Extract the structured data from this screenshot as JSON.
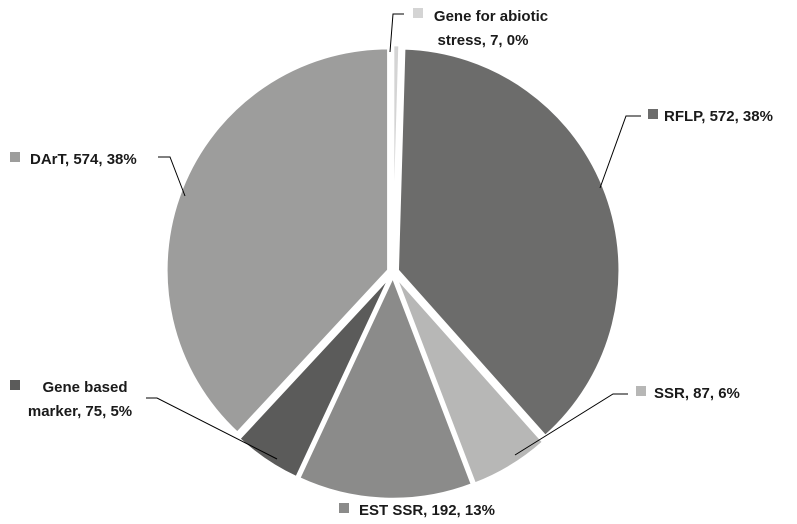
{
  "chart_data": {
    "type": "pie",
    "slices": [
      {
        "label": "Gene for abiotic stress",
        "value": 7,
        "percent": "0%",
        "color": "#d4d4d4"
      },
      {
        "label": "RFLP",
        "value": 572,
        "percent": "38%",
        "color": "#6c6c6b"
      },
      {
        "label": "SSR",
        "value": 87,
        "percent": "6%",
        "color": "#b7b7b6"
      },
      {
        "label": "EST SSR",
        "value": 192,
        "percent": "13%",
        "color": "#8b8b8a"
      },
      {
        "label": "Gene based marker",
        "value": 75,
        "percent": "5%",
        "color": "#5b5b5a"
      },
      {
        "label": "DArT",
        "value": 574,
        "percent": "38%",
        "color": "#9d9d9c"
      }
    ],
    "data_labels": {
      "gene_abiotic": [
        "Gene for abiotic",
        "stress, 7, 0%"
      ],
      "rflp": [
        "RFLP, 572, 38%"
      ],
      "ssr": [
        "SSR, 87, 6%"
      ],
      "est_ssr": [
        "EST SSR, 192, 13%"
      ],
      "gene_based": [
        "Gene based",
        "marker, 75, 5%"
      ],
      "dart": [
        "DArT, 574, 38%"
      ]
    }
  }
}
